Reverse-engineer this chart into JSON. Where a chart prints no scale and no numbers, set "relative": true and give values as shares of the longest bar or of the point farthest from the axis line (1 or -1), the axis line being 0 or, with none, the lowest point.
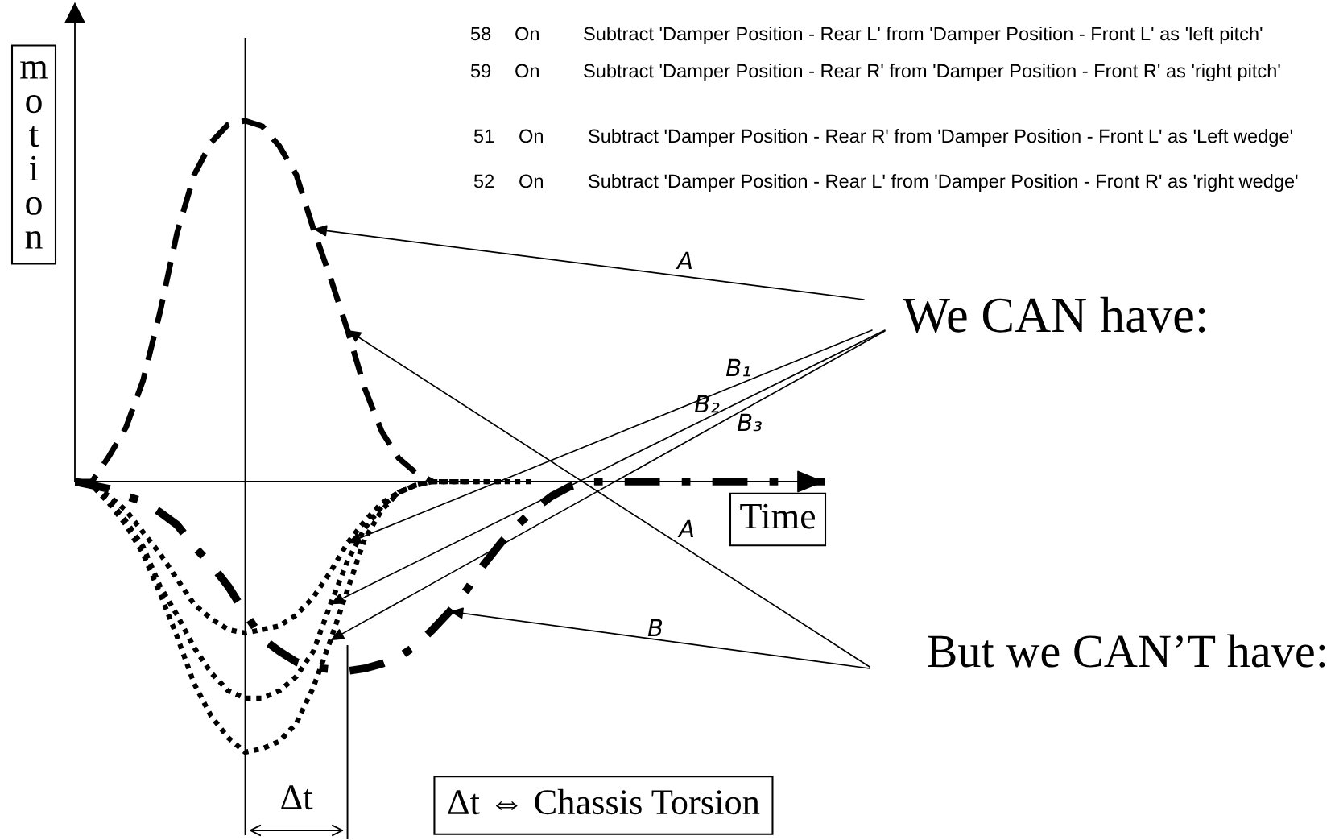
{
  "chart_data": {
    "type": "line",
    "relative": true,
    "categories": [
      null,
      null,
      null,
      null,
      null,
      null,
      null,
      null,
      null,
      null,
      null,
      null,
      null,
      null,
      null,
      null,
      null,
      null,
      null,
      null,
      null,
      null,
      null,
      null,
      null,
      null,
      null,
      null,
      null,
      null,
      null,
      null,
      null,
      null,
      null,
      null,
      null,
      null,
      null,
      null,
      null,
      null,
      null,
      null,
      null
    ],
    "xlabel": "Time",
    "ylabel": "motion",
    "series": [
      {
        "color": "#000000",
        "line_style": "dashed",
        "values": [
          0,
          0,
          0.07,
          0.15,
          0.28,
          0.47,
          0.69,
          0.85,
          0.94,
          0.99,
          1,
          0.985,
          0.93,
          0.85,
          0.7,
          0.565,
          0.42,
          0.26,
          0.14,
          0.065,
          0.025,
          0,
          null,
          null,
          null,
          null,
          null,
          null,
          null,
          null,
          null,
          null,
          null,
          null,
          null,
          null,
          null,
          null,
          null,
          null,
          null,
          null,
          null,
          null,
          null
        ]
      },
      {
        "color": "#000000",
        "line_style": "dotted",
        "values": [
          0,
          -0.01,
          -0.04,
          -0.08,
          -0.14,
          -0.2,
          -0.27,
          -0.34,
          -0.38,
          -0.41,
          -0.42,
          -0.41,
          -0.4,
          -0.37,
          -0.32,
          -0.25,
          -0.17,
          -0.11,
          -0.06,
          -0.03,
          -0.01,
          0,
          0,
          0,
          0,
          0,
          0,
          0,
          null,
          null,
          null,
          null,
          null,
          null,
          null,
          null,
          null,
          null,
          null,
          null,
          null,
          null,
          null,
          null,
          null
        ]
      },
      {
        "color": "#000000",
        "line_style": "dotted",
        "values": [
          0,
          -0.01,
          -0.05,
          -0.11,
          -0.18,
          -0.29,
          -0.37,
          -0.46,
          -0.53,
          -0.58,
          -0.6,
          -0.6,
          -0.58,
          -0.54,
          -0.47,
          -0.34,
          -0.22,
          -0.13,
          -0.07,
          -0.03,
          -0.01,
          0,
          0,
          0,
          0,
          0,
          null,
          null,
          null,
          null,
          null,
          null,
          null,
          null,
          null,
          null,
          null,
          null,
          null,
          null,
          null,
          null,
          null,
          null,
          null
        ]
      },
      {
        "color": "#000000",
        "line_style": "dotted",
        "values": [
          0,
          -0.01,
          -0.06,
          -0.12,
          -0.2,
          -0.31,
          -0.43,
          -0.56,
          -0.65,
          -0.71,
          -0.75,
          -0.74,
          -0.72,
          -0.67,
          -0.57,
          -0.44,
          -0.3,
          -0.16,
          -0.08,
          -0.03,
          -0.01,
          0,
          0,
          0,
          null,
          null,
          null,
          null,
          null,
          null,
          null,
          null,
          null,
          null,
          null,
          null,
          null,
          null,
          null,
          null,
          null,
          null,
          null,
          null,
          null
        ]
      },
      {
        "color": "#000000",
        "line_style": "dashdot",
        "values": [
          0,
          -0.01,
          -0.02,
          -0.04,
          -0.055,
          -0.085,
          -0.12,
          -0.18,
          -0.23,
          -0.29,
          -0.365,
          -0.435,
          -0.47,
          -0.5,
          -0.515,
          -0.52,
          -0.525,
          -0.518,
          -0.505,
          -0.487,
          -0.455,
          -0.41,
          -0.36,
          -0.3,
          -0.23,
          -0.17,
          -0.12,
          -0.075,
          -0.04,
          -0.015,
          0,
          0,
          0,
          0,
          0,
          0,
          0,
          0,
          0,
          0,
          0,
          0,
          0,
          0,
          0
        ]
      }
    ],
    "annotations": [
      "58",
      "On",
      "Subtract 'Damper Position - Rear L' from 'Damper Position - Front L' as 'left pitch'",
      "59",
      "On",
      "Subtract 'Damper Position - Rear R' from 'Damper Position - Front R' as 'right pitch'",
      "51",
      "On",
      "Subtract 'Damper Position - Rear R' from 'Damper Position - Front L' as 'Left wedge'",
      "52",
      "On",
      "Subtract 'Damper Position - Rear L' from 'Damper Position - Front R' as 'right wedge'",
      "We CAN have:",
      "But we CAN’T have:",
      "A",
      "B₁",
      "B₂",
      "B₃",
      "A",
      "B",
      "Δt",
      "Δt ⇔ Chassis Torsion"
    ]
  }
}
